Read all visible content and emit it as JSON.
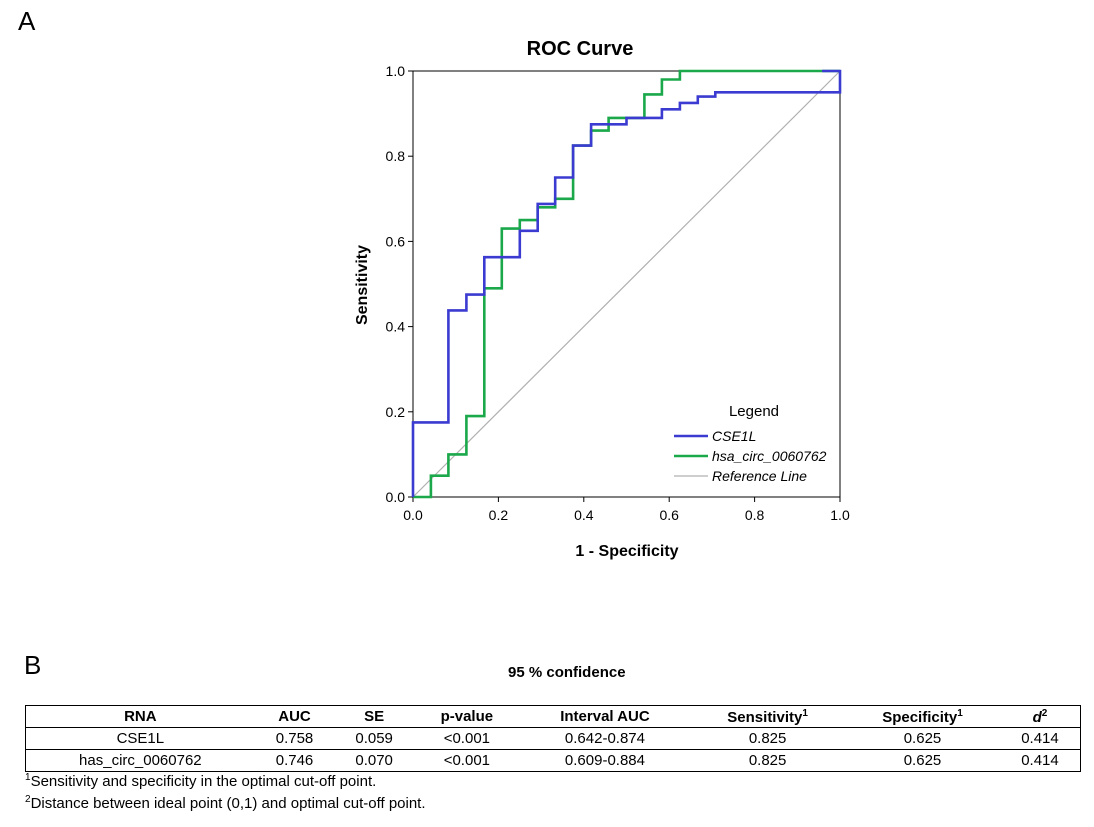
{
  "panels": {
    "a": "A",
    "b": "B"
  },
  "chart_data": {
    "type": "line",
    "title": "ROC Curve",
    "xlabel": "1 - Specificity",
    "ylabel": "Sensitivity",
    "xlim": [
      0.0,
      1.0
    ],
    "ylim": [
      0.0,
      1.0
    ],
    "xticks": [
      "0.0",
      "0.2",
      "0.4",
      "0.6",
      "0.8",
      "1.0"
    ],
    "yticks": [
      "0.0",
      "0.2",
      "0.4",
      "0.6",
      "0.8",
      "1.0"
    ],
    "legend": {
      "title": "Legend",
      "position": "bottom-right"
    },
    "series": [
      {
        "name": "CSE1L",
        "color": "#3b3bd1",
        "x": [
          0,
          0,
          0.083,
          0.083,
          0.125,
          0.125,
          0.167,
          0.167,
          0.25,
          0.25,
          0.292,
          0.292,
          0.333,
          0.333,
          0.375,
          0.375,
          0.417,
          0.417,
          0.5,
          0.5,
          0.583,
          0.583,
          0.625,
          0.625,
          0.667,
          0.667,
          0.708,
          0.708,
          1.0,
          1.0,
          0.958
        ],
        "y": [
          0,
          0.175,
          0.175,
          0.438,
          0.438,
          0.475,
          0.475,
          0.563,
          0.563,
          0.625,
          0.625,
          0.688,
          0.688,
          0.75,
          0.75,
          0.825,
          0.825,
          0.875,
          0.875,
          0.89,
          0.89,
          0.91,
          0.91,
          0.925,
          0.925,
          0.94,
          0.94,
          0.95,
          0.95,
          1.0,
          1.0
        ]
      },
      {
        "name": "hsa_circ_0060762",
        "color": "#1aa84a",
        "x": [
          0,
          0.042,
          0.042,
          0.083,
          0.083,
          0.125,
          0.125,
          0.167,
          0.167,
          0.208,
          0.208,
          0.25,
          0.25,
          0.292,
          0.292,
          0.333,
          0.333,
          0.375,
          0.375,
          0.417,
          0.417,
          0.458,
          0.458,
          0.542,
          0.542,
          0.583,
          0.583,
          0.625,
          0.625,
          1.0
        ],
        "y": [
          0,
          0,
          0.05,
          0.05,
          0.1,
          0.1,
          0.19,
          0.19,
          0.49,
          0.49,
          0.63,
          0.63,
          0.65,
          0.65,
          0.68,
          0.68,
          0.7,
          0.7,
          0.825,
          0.825,
          0.86,
          0.86,
          0.89,
          0.89,
          0.945,
          0.945,
          0.98,
          0.98,
          1.0,
          1.0
        ]
      },
      {
        "name": "Reference Line",
        "color": "#b0b0b0",
        "x": [
          0,
          1
        ],
        "y": [
          0,
          1
        ]
      }
    ]
  },
  "table": {
    "caption": "95 % confidence",
    "headers": [
      "RNA",
      "AUC",
      "SE",
      "p-value",
      "Interval AUC",
      "Sensitivity",
      "Specificity",
      "d"
    ],
    "header_sups": [
      "",
      "",
      "",
      "",
      "",
      "1",
      "1",
      "2"
    ],
    "rows": [
      [
        "CSE1L",
        "0.758",
        "0.059",
        "<0.001",
        "0.642-0.874",
        "0.825",
        "0.625",
        "0.414"
      ],
      [
        "has_circ_0060762",
        "0.746",
        "0.070",
        "<0.001",
        "0.609-0.884",
        "0.825",
        "0.625",
        "0.414"
      ]
    ]
  },
  "footnotes": [
    {
      "sup": "1",
      "text": "Sensitivity and specificity in the optimal cut-off point."
    },
    {
      "sup": "2",
      "text": "Distance between ideal point (0,1) and optimal cut-off point."
    }
  ]
}
